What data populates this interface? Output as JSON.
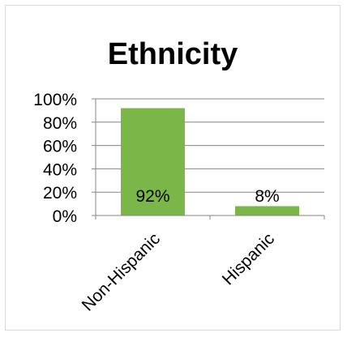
{
  "chart_data": {
    "type": "bar",
    "title": "Ethnicity",
    "categories": [
      "Non-Hispanic",
      "Hispanic"
    ],
    "values": [
      92,
      8
    ],
    "data_labels": [
      "92%",
      "8%"
    ],
    "xlabel": "",
    "ylabel": "",
    "ylim": [
      0,
      100
    ],
    "yticks": [
      0,
      20,
      40,
      60,
      80,
      100
    ],
    "ytick_labels": [
      "0%",
      "20%",
      "40%",
      "60%",
      "80%",
      "100%"
    ],
    "bar_color": "#7ab648",
    "grid": true,
    "legend": "none"
  }
}
